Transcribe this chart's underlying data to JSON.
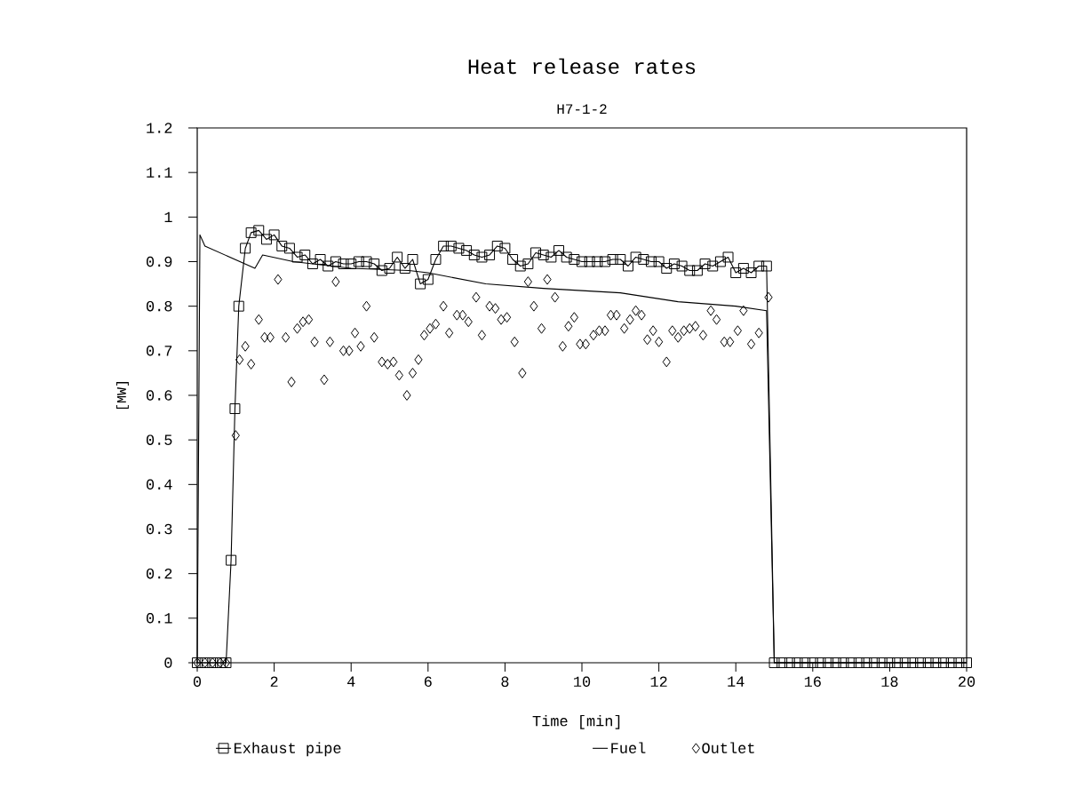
{
  "chart_data": {
    "type": "line",
    "title": "Heat release rates",
    "subtitle": "H7-1-2",
    "xlabel": "Time [min]",
    "ylabel": "[MW]",
    "xlim": [
      0,
      20
    ],
    "ylim": [
      0,
      1.2
    ],
    "xticks": [
      0,
      2,
      4,
      6,
      8,
      10,
      12,
      14,
      16,
      18,
      20
    ],
    "yticks": [
      0,
      0.1,
      0.2,
      0.3,
      0.4,
      0.5,
      0.6,
      0.7,
      0.8,
      0.9,
      1,
      1.1,
      1.2
    ],
    "grid": false,
    "legend": "bottom",
    "series": [
      {
        "name": "Exhaust pipe",
        "type": "line",
        "marker": "square",
        "color": "#000000",
        "x": [
          0,
          0.2,
          0.4,
          0.6,
          0.75,
          0.88,
          0.98,
          1.08,
          1.25,
          1.4,
          1.6,
          1.8,
          2.0,
          2.2,
          2.4,
          2.6,
          2.8,
          3.0,
          3.2,
          3.4,
          3.6,
          3.8,
          4.0,
          4.2,
          4.4,
          4.6,
          4.8,
          5.0,
          5.2,
          5.4,
          5.6,
          5.8,
          6.0,
          6.2,
          6.4,
          6.6,
          6.8,
          7.0,
          7.2,
          7.4,
          7.6,
          7.8,
          8.0,
          8.2,
          8.4,
          8.6,
          8.8,
          9.0,
          9.2,
          9.4,
          9.6,
          9.8,
          10.0,
          10.2,
          10.4,
          10.6,
          10.8,
          11.0,
          11.2,
          11.4,
          11.6,
          11.8,
          12.0,
          12.2,
          12.4,
          12.6,
          12.8,
          13.0,
          13.2,
          13.4,
          13.6,
          13.8,
          14.0,
          14.2,
          14.4,
          14.6,
          14.8,
          15.0,
          15.2,
          15.4,
          15.6,
          15.8,
          16.0,
          16.2,
          16.4,
          16.6,
          16.8,
          17.0,
          17.2,
          17.4,
          17.6,
          17.8,
          18.0,
          18.2,
          18.4,
          18.6,
          18.8,
          19.0,
          19.2,
          19.4,
          19.6,
          19.8,
          20.0
        ],
        "values": [
          0,
          0,
          0,
          0,
          0,
          0.23,
          0.57,
          0.8,
          0.93,
          0.965,
          0.97,
          0.95,
          0.96,
          0.935,
          0.93,
          0.91,
          0.915,
          0.895,
          0.905,
          0.89,
          0.9,
          0.895,
          0.895,
          0.9,
          0.9,
          0.895,
          0.88,
          0.885,
          0.91,
          0.885,
          0.905,
          0.85,
          0.86,
          0.905,
          0.935,
          0.935,
          0.93,
          0.925,
          0.915,
          0.91,
          0.915,
          0.935,
          0.93,
          0.905,
          0.89,
          0.895,
          0.92,
          0.915,
          0.91,
          0.925,
          0.91,
          0.905,
          0.9,
          0.9,
          0.9,
          0.9,
          0.905,
          0.905,
          0.89,
          0.91,
          0.905,
          0.9,
          0.9,
          0.885,
          0.895,
          0.89,
          0.88,
          0.88,
          0.895,
          0.89,
          0.9,
          0.91,
          0.875,
          0.885,
          0.875,
          0.89,
          0.89,
          0,
          0,
          0,
          0,
          0,
          0,
          0,
          0,
          0,
          0,
          0,
          0,
          0,
          0,
          0,
          0,
          0,
          0,
          0,
          0,
          0,
          0,
          0,
          0,
          0,
          0
        ]
      },
      {
        "name": "Fuel",
        "type": "line",
        "marker": "none",
        "color": "#000000",
        "x": [
          0,
          0.07,
          0.2,
          1.5,
          1.7,
          2.5,
          4.0,
          5.5,
          6.0,
          7.5,
          9.0,
          11.0,
          12.5,
          14.0,
          14.8,
          15.0,
          20.0
        ],
        "values": [
          0,
          0.96,
          0.935,
          0.885,
          0.915,
          0.9,
          0.885,
          0.88,
          0.875,
          0.85,
          0.84,
          0.83,
          0.81,
          0.8,
          0.79,
          0,
          0
        ]
      },
      {
        "name": "Outlet",
        "type": "scatter",
        "marker": "diamond",
        "color": "#000000",
        "x": [
          0,
          0.2,
          0.4,
          0.6,
          0.75,
          1.0,
          1.1,
          1.25,
          1.4,
          1.6,
          1.75,
          1.9,
          2.1,
          2.3,
          2.45,
          2.6,
          2.75,
          2.9,
          3.05,
          3.3,
          3.45,
          3.6,
          3.8,
          3.95,
          4.1,
          4.25,
          4.4,
          4.6,
          4.8,
          4.95,
          5.1,
          5.25,
          5.45,
          5.6,
          5.75,
          5.9,
          6.05,
          6.2,
          6.4,
          6.55,
          6.75,
          6.9,
          7.05,
          7.25,
          7.4,
          7.6,
          7.75,
          7.9,
          8.05,
          8.25,
          8.45,
          8.6,
          8.75,
          8.95,
          9.1,
          9.3,
          9.5,
          9.65,
          9.8,
          9.95,
          10.1,
          10.3,
          10.45,
          10.6,
          10.75,
          10.9,
          11.1,
          11.25,
          11.4,
          11.55,
          11.7,
          11.85,
          12.0,
          12.2,
          12.35,
          12.5,
          12.65,
          12.8,
          12.95,
          13.15,
          13.35,
          13.5,
          13.7,
          13.85,
          14.05,
          14.2,
          14.4,
          14.6,
          14.85
        ],
        "values": [
          0,
          0,
          0,
          0,
          0,
          0.51,
          0.68,
          0.71,
          0.67,
          0.77,
          0.73,
          0.73,
          0.86,
          0.73,
          0.63,
          0.75,
          0.765,
          0.77,
          0.72,
          0.635,
          0.72,
          0.855,
          0.7,
          0.7,
          0.74,
          0.71,
          0.8,
          0.73,
          0.675,
          0.67,
          0.675,
          0.645,
          0.6,
          0.65,
          0.68,
          0.735,
          0.75,
          0.76,
          0.8,
          0.74,
          0.78,
          0.78,
          0.765,
          0.82,
          0.735,
          0.8,
          0.795,
          0.77,
          0.775,
          0.72,
          0.65,
          0.855,
          0.8,
          0.75,
          0.86,
          0.82,
          0.71,
          0.755,
          0.775,
          0.715,
          0.715,
          0.735,
          0.745,
          0.745,
          0.78,
          0.78,
          0.75,
          0.77,
          0.79,
          0.78,
          0.725,
          0.745,
          0.72,
          0.675,
          0.745,
          0.73,
          0.745,
          0.75,
          0.755,
          0.735,
          0.79,
          0.77,
          0.72,
          0.72,
          0.745,
          0.79,
          0.715,
          0.74,
          0.82
        ]
      }
    ]
  }
}
